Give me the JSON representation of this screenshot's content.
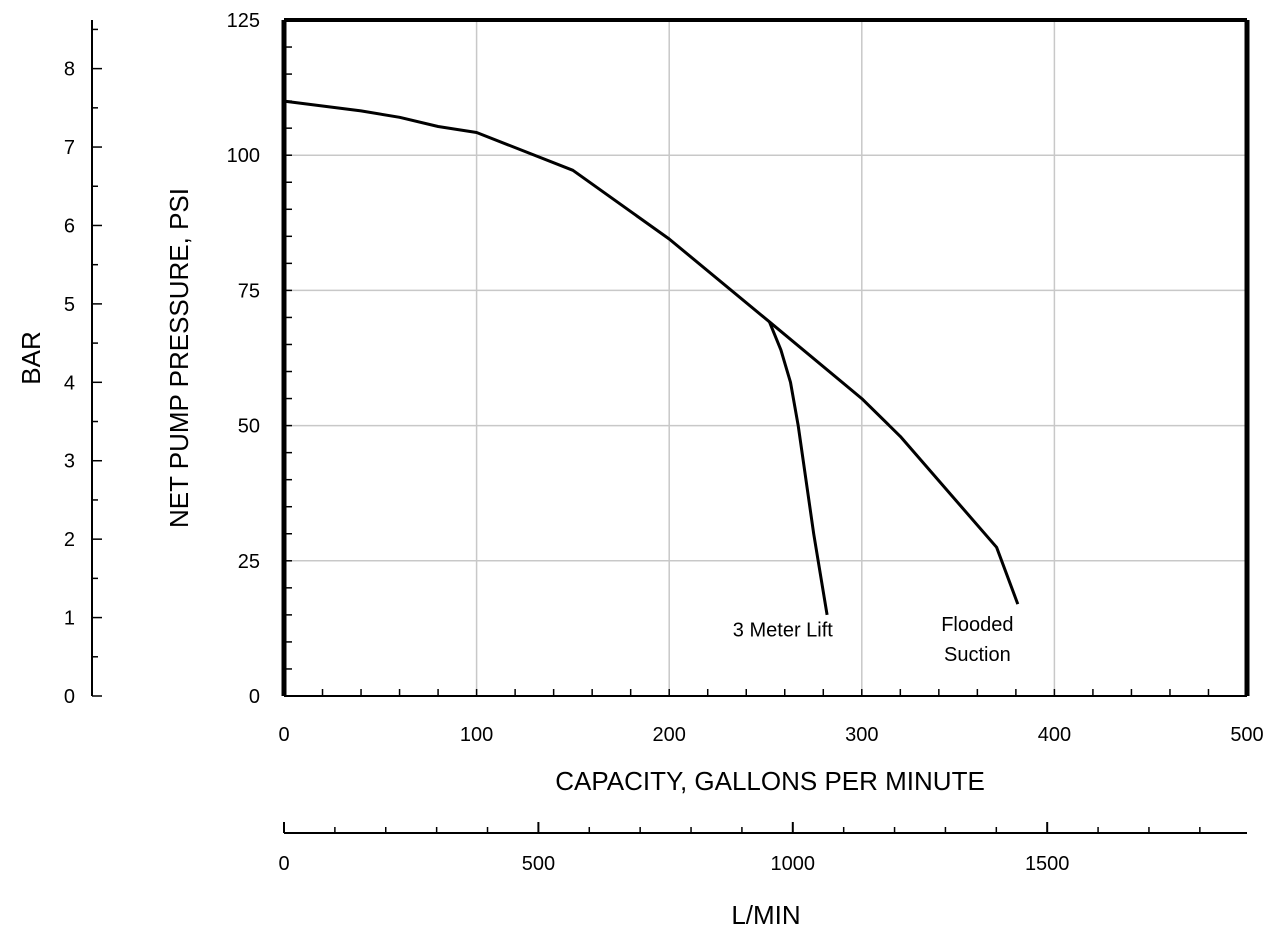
{
  "chart_data": {
    "type": "line",
    "xlabel": "CAPACITY, GALLONS PER MINUTE",
    "ylabel": "NET PUMP PRESSURE, PSI",
    "secondary_x_label": "L/MIN",
    "secondary_y_label": "BAR",
    "xlim": [
      0,
      500
    ],
    "ylim": [
      0,
      125
    ],
    "secondary_xlim": [
      0,
      1892.7
    ],
    "secondary_ylim": [
      0,
      8.62
    ],
    "x_ticks": [
      "0",
      "100",
      "200",
      "300",
      "400",
      "500"
    ],
    "y_ticks": [
      "0",
      "25",
      "50",
      "75",
      "100",
      "125"
    ],
    "secondary_x_ticks": [
      "0",
      "500",
      "1000",
      "1500"
    ],
    "secondary_y_ticks": [
      "0",
      "1",
      "2",
      "3",
      "4",
      "5",
      "6",
      "7",
      "8"
    ],
    "grid": true,
    "series": [
      {
        "name": "Flooded Suction",
        "x": [
          0,
          40,
          60,
          80,
          100,
          150,
          200,
          252,
          300,
          320,
          370,
          381
        ],
        "y": [
          110,
          108.2,
          107,
          105.3,
          104.2,
          97.2,
          84.5,
          69.2,
          55,
          48,
          27.5,
          17
        ]
      },
      {
        "name": "3 Meter Lift",
        "x": [
          252,
          258,
          263,
          267,
          275,
          282
        ],
        "y": [
          69.2,
          64,
          58,
          50,
          30,
          15
        ]
      }
    ],
    "annotations": [
      {
        "text": "3 Meter Lift",
        "x": 259,
        "y": 11
      },
      {
        "text": "Flooded",
        "x": 360,
        "y": 12
      },
      {
        "text": "Suction",
        "x": 360,
        "y": 6.5
      }
    ],
    "line_color": "#000000",
    "grid_color": "#c8c8c8"
  }
}
